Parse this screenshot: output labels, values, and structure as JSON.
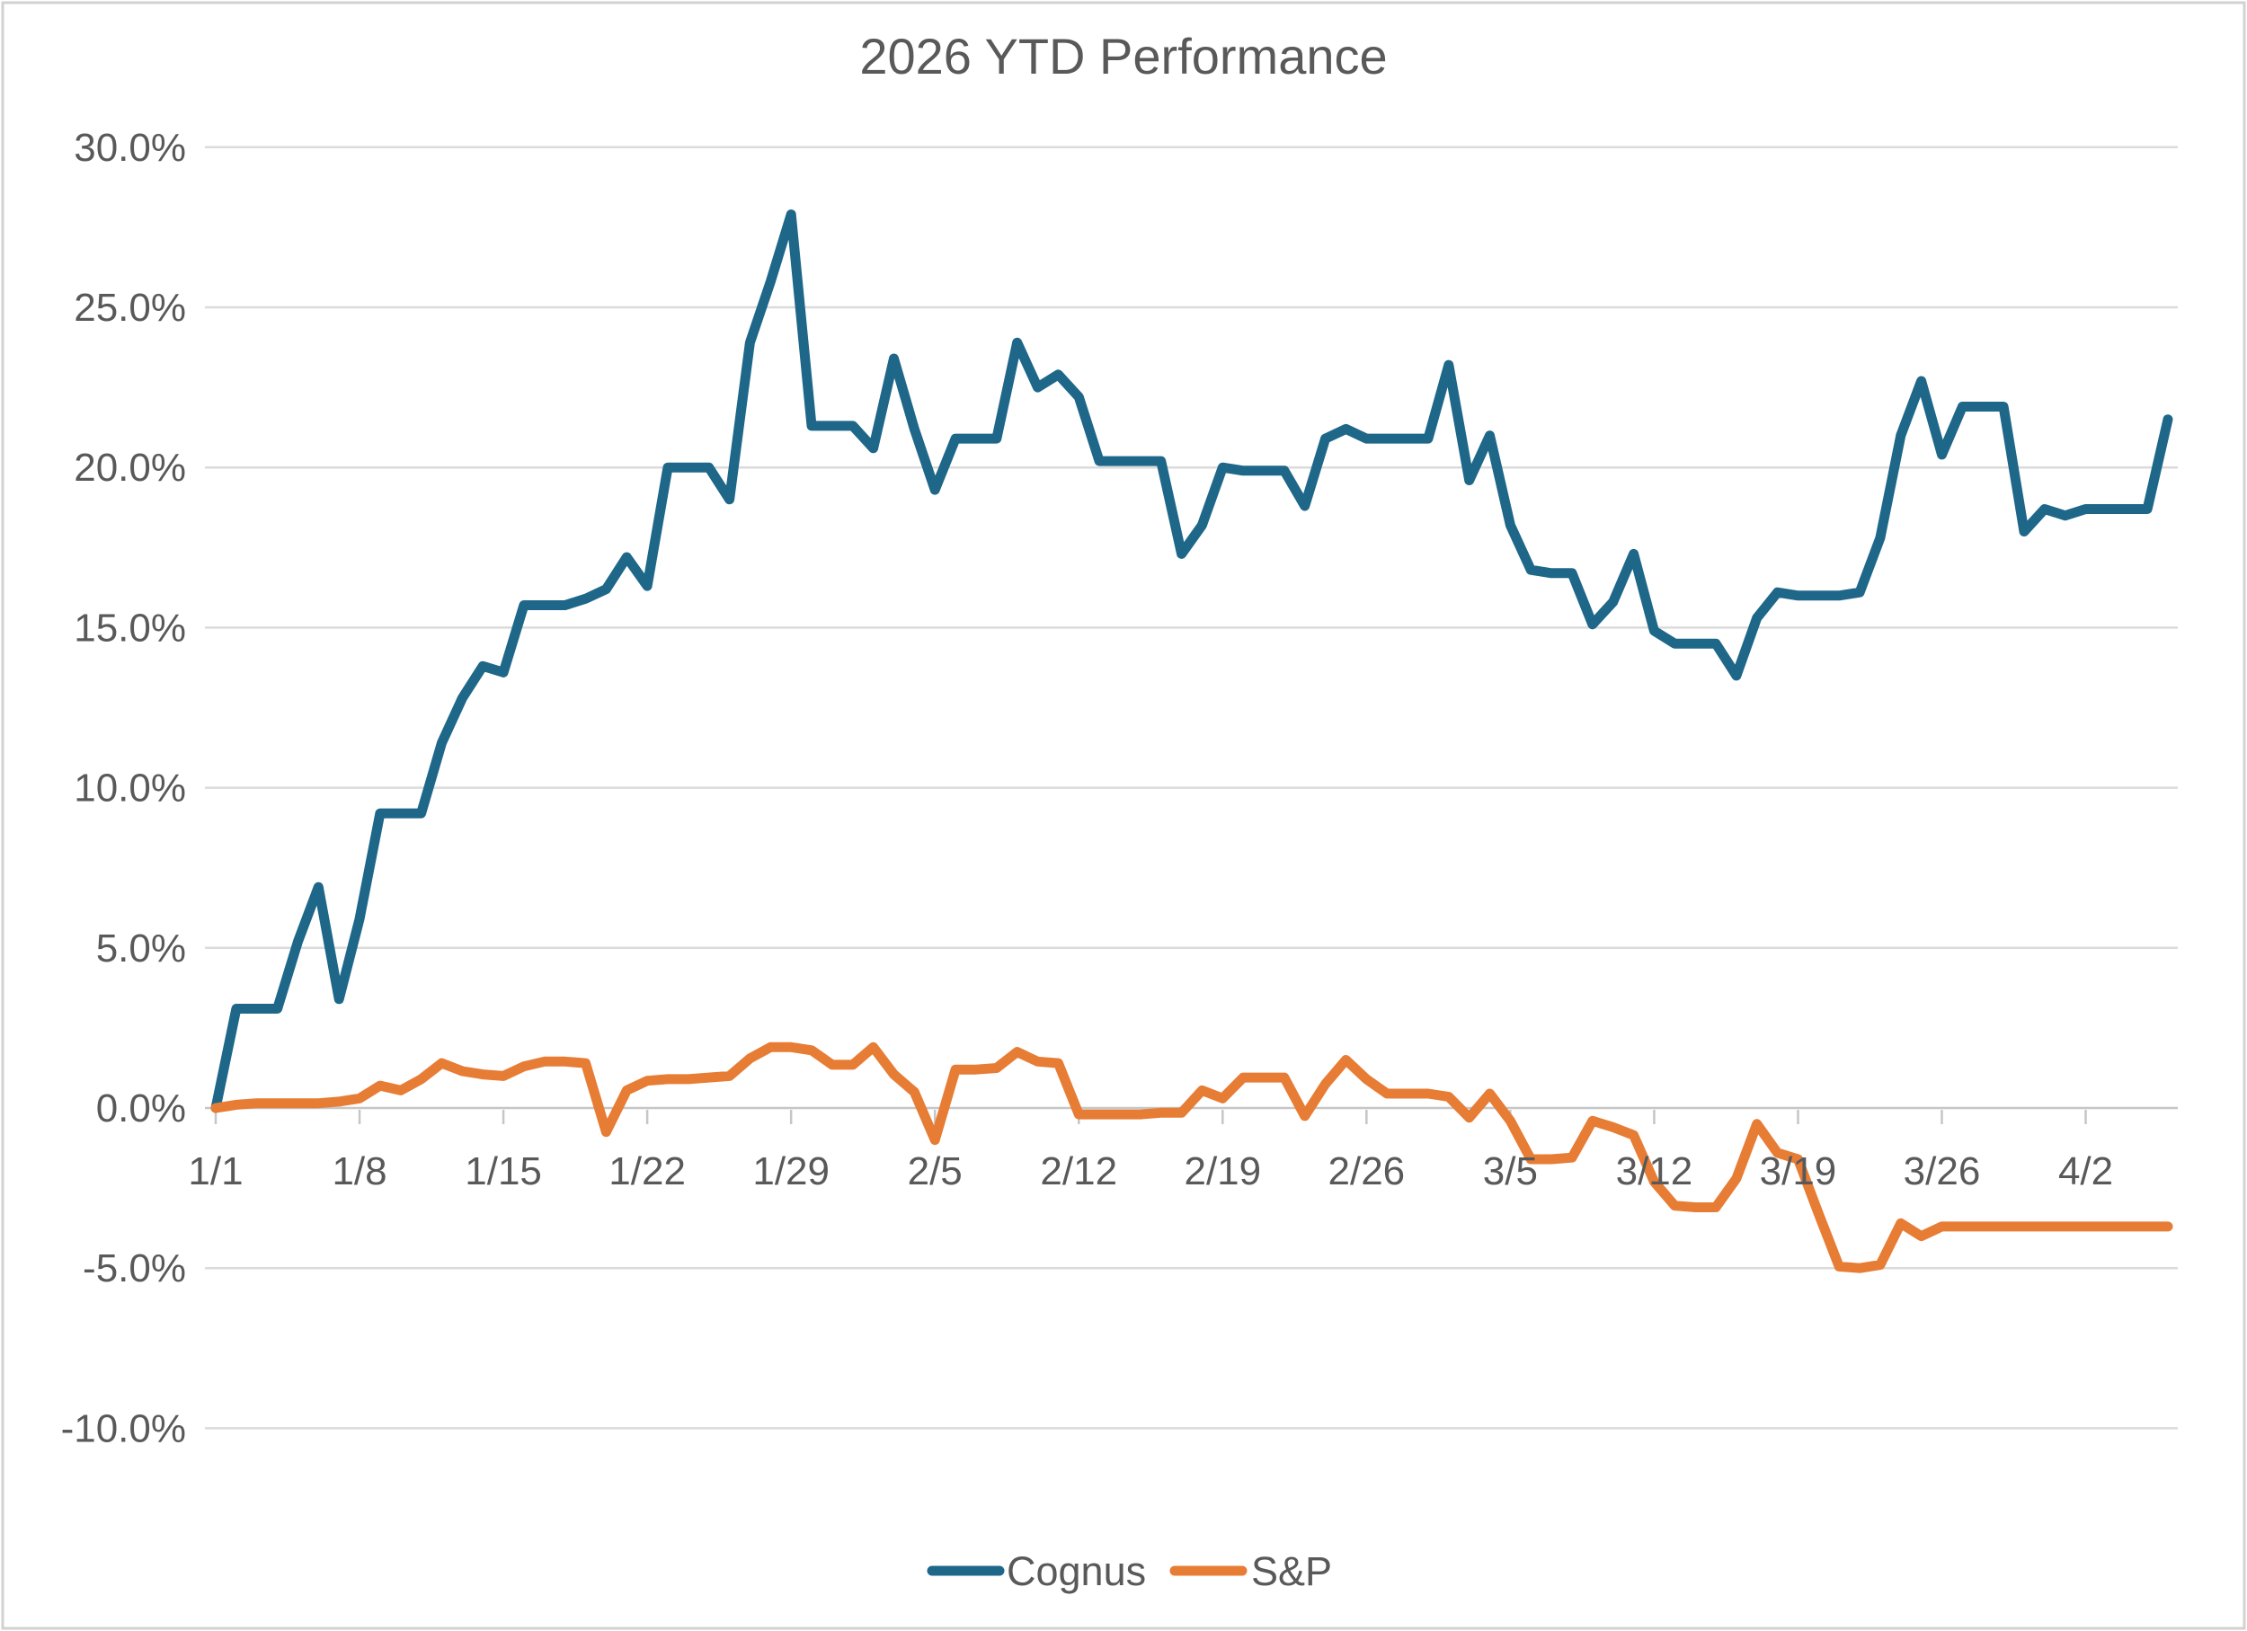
{
  "chart_data": {
    "type": "line",
    "title": "2026 YTD Performance",
    "x_axis": {
      "tick_labels": [
        "1/1",
        "1/8",
        "1/15",
        "1/22",
        "1/29",
        "2/5",
        "2/12",
        "2/19",
        "2/26",
        "3/5",
        "3/12",
        "3/19",
        "3/26",
        "4/2"
      ],
      "tick_day_indices": [
        0,
        7,
        14,
        21,
        28,
        35,
        42,
        49,
        56,
        63,
        70,
        77,
        84,
        91
      ]
    },
    "y_axis": {
      "min": -10,
      "max": 30,
      "format": "percent",
      "tick_values": [
        30,
        25,
        20,
        15,
        10,
        5,
        0,
        -5,
        -10
      ],
      "tick_labels": [
        "30.0%",
        "25.0%",
        "20.0%",
        "15.0%",
        "10.0%",
        "5.0%",
        "0.0%",
        "-5.0%",
        "-10.0%"
      ]
    },
    "grid": true,
    "legend_position": "bottom-center",
    "dates": [
      "1/1",
      "1/2",
      "1/3",
      "1/4",
      "1/5",
      "1/6",
      "1/7",
      "1/8",
      "1/9",
      "1/10",
      "1/11",
      "1/12",
      "1/13",
      "1/14",
      "1/15",
      "1/16",
      "1/17",
      "1/18",
      "1/19",
      "1/20",
      "1/21",
      "1/22",
      "1/23",
      "1/24",
      "1/25",
      "1/26",
      "1/27",
      "1/28",
      "1/29",
      "1/30",
      "1/31",
      "2/1",
      "2/2",
      "2/3",
      "2/4",
      "2/5",
      "2/6",
      "2/7",
      "2/8",
      "2/9",
      "2/10",
      "2/11",
      "2/12",
      "2/13",
      "2/14",
      "2/15",
      "2/16",
      "2/17",
      "2/18",
      "2/19",
      "2/20",
      "2/21",
      "2/22",
      "2/23",
      "2/24",
      "2/25",
      "2/26",
      "2/27",
      "2/28",
      "3/1",
      "3/2",
      "3/3",
      "3/4",
      "3/5",
      "3/6",
      "3/7",
      "3/8",
      "3/9",
      "3/10",
      "3/11",
      "3/12",
      "3/13",
      "3/14",
      "3/15",
      "3/16",
      "3/17",
      "3/18",
      "3/19",
      "3/20",
      "3/21",
      "3/22",
      "3/23",
      "3/24",
      "3/25",
      "3/26",
      "3/27",
      "3/28",
      "3/29",
      "3/30",
      "3/31",
      "4/1",
      "4/2",
      "4/3",
      "4/4",
      "4/5",
      "4/6"
    ],
    "series": [
      {
        "name": "Cognus",
        "color": "#1F6789",
        "values": [
          0.0,
          3.1,
          3.1,
          3.1,
          5.2,
          6.9,
          3.4,
          5.9,
          9.2,
          9.2,
          9.2,
          11.4,
          12.8,
          13.8,
          13.6,
          15.7,
          15.7,
          15.7,
          15.9,
          16.2,
          17.2,
          16.3,
          20.0,
          20.0,
          20.0,
          19.0,
          23.9,
          25.8,
          27.9,
          21.3,
          21.3,
          21.3,
          20.6,
          23.4,
          21.2,
          19.3,
          20.9,
          20.9,
          20.9,
          23.9,
          22.5,
          22.9,
          22.2,
          20.2,
          20.2,
          20.2,
          20.2,
          17.3,
          18.2,
          20.0,
          19.9,
          19.9,
          19.9,
          18.8,
          20.9,
          21.2,
          20.9,
          20.9,
          20.9,
          20.9,
          23.2,
          19.6,
          21.0,
          18.2,
          16.8,
          16.7,
          16.7,
          15.1,
          15.8,
          17.3,
          14.9,
          14.5,
          14.5,
          14.5,
          13.5,
          15.3,
          16.1,
          16.0,
          16.0,
          16.0,
          16.1,
          17.8,
          21.0,
          22.7,
          20.4,
          21.9,
          21.9,
          21.9,
          18.0,
          18.7,
          18.5,
          18.7,
          18.7,
          18.7,
          18.7,
          21.5
        ]
      },
      {
        "name": "S&P",
        "color": "#E77C35",
        "values": [
          0.0,
          0.1,
          0.15,
          0.15,
          0.15,
          0.15,
          0.2,
          0.3,
          0.7,
          0.55,
          0.9,
          1.4,
          1.15,
          1.05,
          1.0,
          1.3,
          1.45,
          1.45,
          1.4,
          -0.75,
          0.55,
          0.85,
          0.9,
          0.9,
          0.95,
          1.0,
          1.55,
          1.9,
          1.9,
          1.8,
          1.35,
          1.35,
          1.9,
          1.05,
          0.5,
          -1.0,
          1.2,
          1.2,
          1.25,
          1.75,
          1.45,
          1.4,
          -0.2,
          -0.2,
          -0.2,
          -0.2,
          -0.15,
          -0.15,
          0.55,
          0.3,
          0.95,
          0.95,
          0.95,
          -0.25,
          0.75,
          1.5,
          0.9,
          0.45,
          0.45,
          0.45,
          0.35,
          -0.3,
          0.45,
          -0.4,
          -1.6,
          -1.6,
          -1.55,
          -0.4,
          -0.6,
          -0.85,
          -2.3,
          -3.05,
          -3.1,
          -3.1,
          -2.2,
          -0.5,
          -1.4,
          -1.6,
          -3.3,
          -4.95,
          -5.0,
          -4.9,
          -3.6,
          -4.0,
          -3.7,
          -3.7,
          -3.7,
          -3.7,
          -3.7,
          -3.7,
          -3.7,
          -3.7,
          -3.7,
          -3.7,
          -3.7,
          -3.7
        ]
      }
    ],
    "colors": {
      "gridline": "#DBDBDB",
      "axis_line": "#C6C6C6",
      "text": "#595959",
      "background": "#FFFFFF",
      "border": "#D2D2D2"
    }
  }
}
